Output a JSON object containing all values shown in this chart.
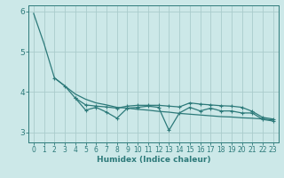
{
  "bg_color": "#cce8e8",
  "line_color": "#2d7a7a",
  "grid_color": "#aacccc",
  "xlabel": "Humidex (Indice chaleur)",
  "ylim": [
    2.75,
    6.15
  ],
  "xlim": [
    -0.5,
    23.5
  ],
  "yticks": [
    3,
    4,
    5,
    6
  ],
  "xticks": [
    0,
    1,
    2,
    3,
    4,
    5,
    6,
    7,
    8,
    9,
    10,
    11,
    12,
    13,
    14,
    15,
    16,
    17,
    18,
    19,
    20,
    21,
    22,
    23
  ],
  "line_top_x": [
    0,
    1,
    2,
    3,
    4,
    5,
    6,
    7,
    8,
    9,
    10,
    11,
    12,
    13,
    14,
    15,
    16,
    17,
    18,
    19,
    20,
    21,
    22,
    23
  ],
  "line_top_y": [
    5.95,
    5.2,
    4.35,
    4.15,
    3.95,
    3.82,
    3.73,
    3.68,
    3.62,
    3.6,
    3.57,
    3.55,
    3.52,
    3.5,
    3.47,
    3.45,
    3.43,
    3.41,
    3.39,
    3.38,
    3.36,
    3.35,
    3.33,
    3.31
  ],
  "line_mid_x": [
    2,
    3,
    4,
    5,
    6,
    7,
    8,
    9,
    10,
    11,
    12,
    13,
    14,
    15,
    16,
    17,
    18,
    19,
    20,
    21,
    22,
    23
  ],
  "line_mid_y": [
    4.35,
    4.15,
    3.85,
    3.68,
    3.65,
    3.63,
    3.6,
    3.65,
    3.67,
    3.67,
    3.67,
    3.65,
    3.63,
    3.73,
    3.7,
    3.68,
    3.66,
    3.65,
    3.62,
    3.52,
    3.37,
    3.33
  ],
  "line_bot_x": [
    4,
    5,
    6,
    7,
    8,
    9,
    10,
    11,
    12,
    13,
    14,
    15,
    16,
    17,
    18,
    19,
    20,
    21,
    22,
    23
  ],
  "line_bot_y": [
    3.85,
    3.55,
    3.62,
    3.5,
    3.35,
    3.6,
    3.62,
    3.65,
    3.62,
    3.05,
    3.48,
    3.62,
    3.53,
    3.6,
    3.53,
    3.53,
    3.48,
    3.48,
    3.32,
    3.28
  ],
  "linewidth": 0.9,
  "markersize": 3.0,
  "xlabel_fontsize": 6.5,
  "tick_fontsize": 5.5
}
